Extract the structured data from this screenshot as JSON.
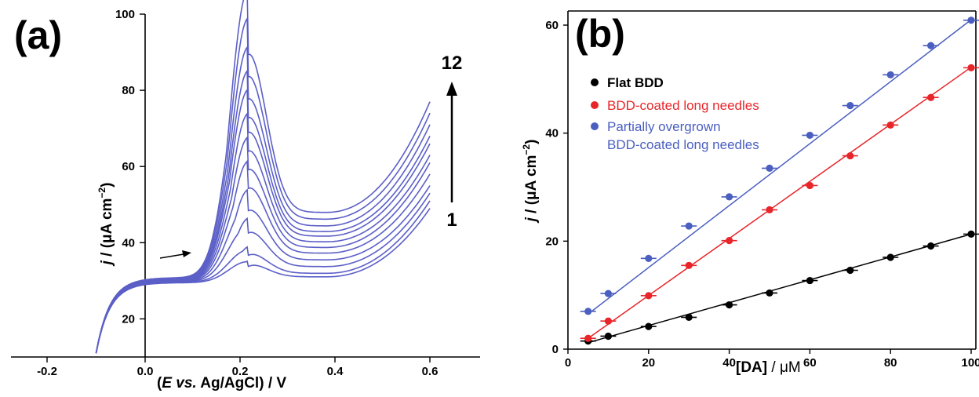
{
  "chart_data": [
    {
      "panel": "(a)",
      "type": "line",
      "xlabel_parts": [
        "(",
        "E vs.",
        " Ag/AgCl) /  V"
      ],
      "ylabel_parts": [
        "j",
        " / (μA cm",
        "−2",
        ")"
      ],
      "xlim": [
        -0.3,
        0.65
      ],
      "ylim": [
        10,
        100
      ],
      "xticks": [
        -0.2,
        0.0,
        0.2,
        0.4,
        0.6
      ],
      "xtick_labels": [
        "-0.2",
        "0.0",
        "0.2",
        "0.4",
        "0.6"
      ],
      "yticks": [
        20,
        40,
        60,
        80,
        100
      ],
      "ytick_labels": [
        "20",
        "40",
        "60",
        "80",
        "100"
      ],
      "annotations": {
        "arrow_top_label": "12",
        "arrow_bottom_label": "1"
      },
      "line_color": "#5b5fc7",
      "curve_count": 12,
      "series_peak_current": [
        35,
        38,
        44,
        50,
        56,
        61,
        66,
        71,
        75,
        80,
        86,
        92
      ],
      "series_end_current": [
        49,
        51,
        53,
        55,
        58,
        61,
        63,
        66,
        68,
        71,
        74,
        77
      ],
      "peak_potential_V": 0.215,
      "start_potential_V": -0.1,
      "end_potential_V": 0.6,
      "start_current": 11,
      "plateau_current": 29.5
    },
    {
      "panel": "(b)",
      "type": "scatter",
      "xlabel_parts": [
        "[DA]",
        " / μM"
      ],
      "ylabel_parts": [
        "j",
        " / (μA cm",
        "−2",
        ")"
      ],
      "xlim": [
        0,
        100
      ],
      "ylim": [
        0,
        62
      ],
      "xticks": [
        0,
        20,
        40,
        60,
        80,
        100
      ],
      "xtick_labels": [
        "0",
        "20",
        "40",
        "60",
        "80",
        "100"
      ],
      "yticks": [
        0,
        20,
        40,
        60
      ],
      "ytick_labels": [
        "0",
        "20",
        "40",
        "60"
      ],
      "x": [
        5,
        10,
        20,
        30,
        40,
        50,
        60,
        70,
        80,
        90,
        100
      ],
      "series": [
        {
          "name": "Flat BDD",
          "color": "#000000",
          "bold": true,
          "values": [
            1.5,
            2.4,
            4.2,
            5.9,
            8.2,
            10.4,
            12.7,
            14.6,
            17.0,
            19.1,
            21.3
          ],
          "fit": [
            1.2,
            21.3
          ]
        },
        {
          "name": "BDD-coated long needles",
          "color": "#e8262a",
          "bold": false,
          "values": [
            2.0,
            5.2,
            9.9,
            15.5,
            20.1,
            25.8,
            30.3,
            35.8,
            41.5,
            46.6,
            52.1
          ],
          "fit": [
            2.0,
            52.2
          ]
        },
        {
          "name": "Partially overgrown\nBDD-coated long needles",
          "name_lines": [
            "Partially overgrown",
            "BDD-coated long needles"
          ],
          "color": "#4a5fc0",
          "bold": false,
          "values": [
            7.0,
            10.3,
            16.8,
            22.8,
            28.2,
            33.5,
            39.6,
            45.1,
            50.8,
            56.2,
            60.9
          ],
          "fit": [
            6.5,
            61.0
          ]
        }
      ],
      "legend_placement": "top-left"
    }
  ]
}
